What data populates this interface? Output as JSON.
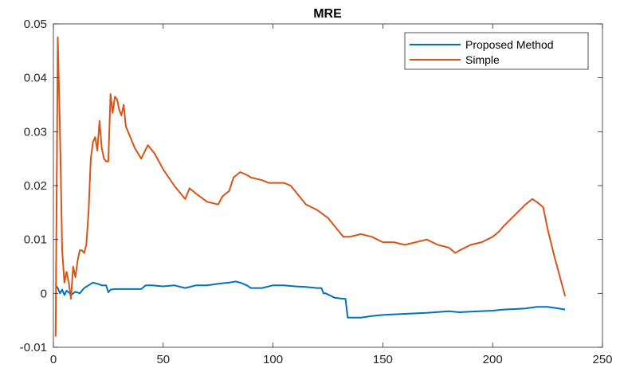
{
  "chart_data": {
    "type": "line",
    "title": "MRE",
    "xlabel": "",
    "ylabel": "",
    "xlim": [
      0,
      250
    ],
    "ylim": [
      -0.01,
      0.05
    ],
    "xticks": [
      0,
      50,
      100,
      150,
      200,
      250
    ],
    "yticks": [
      -0.01,
      0,
      0.01,
      0.02,
      0.03,
      0.04,
      0.05
    ],
    "ytick_labels": [
      "-0.01",
      "0",
      "0.01",
      "0.02",
      "0.03",
      "0.04",
      "0.05"
    ],
    "grid": false,
    "legend_position": "top-right",
    "series": [
      {
        "name": "Proposed Method",
        "color": "#0072BD",
        "x": [
          1,
          2,
          3,
          4,
          5,
          6,
          7,
          8,
          10,
          12,
          14,
          16,
          18,
          20,
          22,
          24,
          25,
          26,
          28,
          30,
          35,
          40,
          42,
          45,
          50,
          55,
          60,
          65,
          70,
          75,
          80,
          83,
          85,
          88,
          90,
          95,
          100,
          105,
          110,
          115,
          120,
          122,
          123,
          124,
          128,
          132,
          133,
          134,
          135,
          140,
          145,
          150,
          160,
          170,
          180,
          185,
          190,
          200,
          205,
          210,
          215,
          220,
          225,
          230,
          233
        ],
        "y": [
          0.0015,
          0.001,
          0.0,
          0.0007,
          -0.0003,
          0.0005,
          0.0002,
          -0.0003,
          0.0003,
          0.0,
          0.001,
          0.0015,
          0.002,
          0.0018,
          0.0015,
          0.0015,
          0.0002,
          0.0007,
          0.0008,
          0.0008,
          0.0008,
          0.0008,
          0.0015,
          0.0015,
          0.0013,
          0.0015,
          0.001,
          0.0015,
          0.0015,
          0.0018,
          0.002,
          0.0022,
          0.002,
          0.0015,
          0.001,
          0.001,
          0.0015,
          0.0015,
          0.0013,
          0.0012,
          0.001,
          0.001,
          0.0,
          0.0,
          -0.0008,
          -0.001,
          -0.001,
          -0.0045,
          -0.0045,
          -0.0045,
          -0.0042,
          -0.004,
          -0.0038,
          -0.0036,
          -0.0033,
          -0.0035,
          -0.0034,
          -0.0032,
          -0.003,
          -0.0029,
          -0.0028,
          -0.0025,
          -0.0025,
          -0.0028,
          -0.003
        ]
      },
      {
        "name": "Simple",
        "color": "#D95319",
        "x": [
          1,
          2,
          3,
          4,
          5,
          6,
          7,
          8,
          9,
          10,
          11,
          12,
          13,
          14,
          15,
          16,
          17,
          18,
          19,
          20,
          21,
          22,
          23,
          24,
          25,
          26,
          27,
          28,
          29,
          30,
          31,
          32,
          33,
          35,
          37,
          40,
          43,
          46,
          50,
          55,
          60,
          62,
          65,
          70,
          75,
          77,
          80,
          82,
          85,
          88,
          90,
          95,
          98,
          100,
          105,
          108,
          110,
          115,
          120,
          125,
          130,
          132,
          135,
          140,
          145,
          150,
          155,
          160,
          165,
          170,
          175,
          180,
          183,
          185,
          190,
          195,
          200,
          203,
          205,
          210,
          215,
          218,
          220,
          223,
          225,
          228,
          230,
          233
        ],
        "y": [
          -0.008,
          0.0475,
          0.03,
          0.008,
          0.002,
          0.004,
          0.002,
          -0.001,
          0.005,
          0.003,
          0.006,
          0.008,
          0.008,
          0.0075,
          0.009,
          0.015,
          0.025,
          0.028,
          0.029,
          0.0265,
          0.032,
          0.027,
          0.025,
          0.0245,
          0.0245,
          0.037,
          0.0335,
          0.0365,
          0.036,
          0.034,
          0.033,
          0.035,
          0.031,
          0.029,
          0.027,
          0.025,
          0.0275,
          0.026,
          0.023,
          0.02,
          0.0175,
          0.0195,
          0.0185,
          0.017,
          0.0165,
          0.018,
          0.019,
          0.0215,
          0.0225,
          0.022,
          0.0215,
          0.021,
          0.0205,
          0.0205,
          0.0205,
          0.02,
          0.019,
          0.0165,
          0.0155,
          0.014,
          0.0115,
          0.0105,
          0.0105,
          0.011,
          0.0105,
          0.0095,
          0.0095,
          0.009,
          0.0095,
          0.01,
          0.009,
          0.0085,
          0.0075,
          0.008,
          0.009,
          0.0095,
          0.0105,
          0.0115,
          0.0125,
          0.0145,
          0.0165,
          0.0175,
          0.017,
          0.016,
          0.012,
          0.007,
          0.004,
          -0.0005
        ]
      }
    ]
  }
}
